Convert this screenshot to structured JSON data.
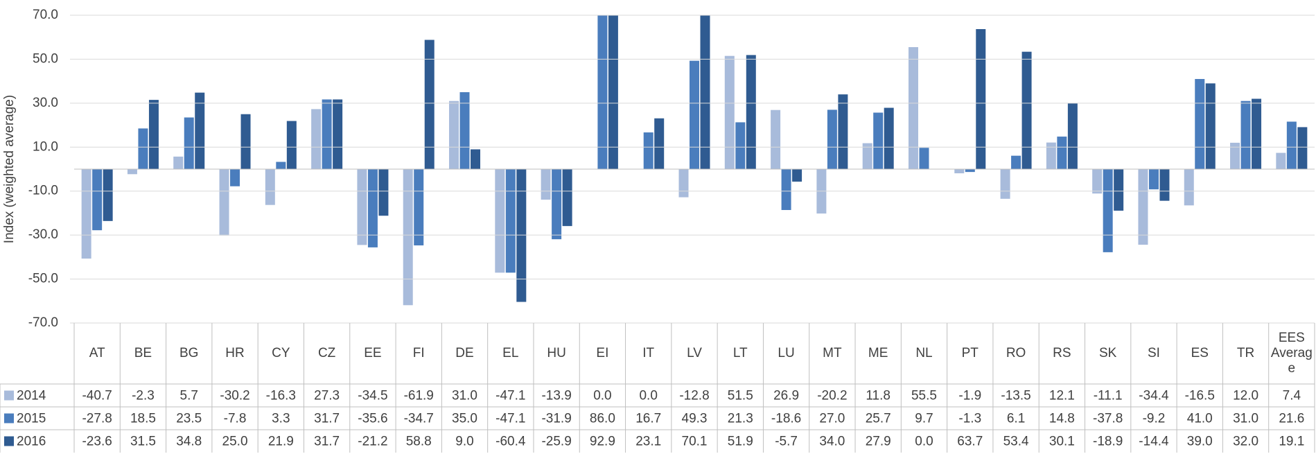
{
  "chart_data": {
    "type": "bar",
    "y_label": "Index (weighted average)",
    "categories": [
      "AT",
      "BE",
      "BG",
      "HR",
      "CY",
      "CZ",
      "EE",
      "FI",
      "DE",
      "EL",
      "HU",
      "EI",
      "IT",
      "LV",
      "LT",
      "LU",
      "MT",
      "ME",
      "NL",
      "PT",
      "RO",
      "RS",
      "SK",
      "SI",
      "ES",
      "TR",
      "EES Average"
    ],
    "series": [
      {
        "name": "2014",
        "color": "#a8bbdb",
        "values": [
          -40.7,
          -2.3,
          5.7,
          -30.2,
          -16.3,
          27.3,
          -34.5,
          -61.9,
          31.0,
          -47.1,
          -13.9,
          0.0,
          0.0,
          -12.8,
          51.5,
          26.9,
          -20.2,
          11.8,
          55.5,
          -1.9,
          -13.5,
          12.1,
          -11.1,
          -34.4,
          -16.5,
          12.0,
          7.4
        ],
        "value_labels": [
          "-40.7",
          "-2.3",
          "5.7",
          "-30.2",
          "-16.3",
          "27.3",
          "-34.5",
          "-61.9",
          "31.0",
          "-47.1",
          "-13.9",
          "0.0",
          "0.0",
          "-12.8",
          "51.5",
          "26.9",
          "-20.2",
          "11.8",
          "55.5",
          "-1.9",
          "-13.5",
          "12.1",
          "-11.1",
          "-34.4",
          "-16.5",
          "12.0",
          "7.4"
        ]
      },
      {
        "name": "2015",
        "color": "#4a7dbd",
        "values": [
          -27.8,
          18.5,
          23.5,
          -7.8,
          3.3,
          31.7,
          -35.6,
          -34.7,
          35.0,
          -47.1,
          -31.9,
          86.0,
          16.7,
          49.3,
          21.3,
          -18.6,
          27.0,
          25.7,
          9.7,
          -1.3,
          6.1,
          14.8,
          -37.8,
          -9.2,
          41.0,
          31.0,
          21.6
        ],
        "value_labels": [
          "-27.8",
          "18.5",
          "23.5",
          "-7.8",
          "3.3",
          "31.7",
          "-35.6",
          "-34.7",
          "35.0",
          "-47.1",
          "-31.9",
          "86.0",
          "16.7",
          "49.3",
          "21.3",
          "-18.6",
          "27.0",
          "25.7",
          "9.7",
          "-1.3",
          "6.1",
          "14.8",
          "-37.8",
          "-9.2",
          "41.0",
          "31.0",
          "21.6"
        ]
      },
      {
        "name": "2016",
        "color": "#2f5b91",
        "values": [
          -23.6,
          31.5,
          34.8,
          25.0,
          21.9,
          31.7,
          -21.2,
          58.8,
          9.0,
          -60.4,
          -25.9,
          92.9,
          23.1,
          70.1,
          51.9,
          -5.7,
          34.0,
          27.9,
          0.0,
          63.7,
          53.4,
          30.1,
          -18.9,
          -14.4,
          39.0,
          32.0,
          19.1
        ],
        "value_labels": [
          "-23.6",
          "31.5",
          "34.8",
          "25.0",
          "21.9",
          "31.7",
          "-21.2",
          "58.8",
          "9.0",
          "-60.4",
          "-25.9",
          "92.9",
          "23.1",
          "70.1",
          "51.9",
          "-5.7",
          "34.0",
          "27.9",
          "0.0",
          "63.7",
          "53.4",
          "30.1",
          "-18.9",
          "-14.4",
          "39.0",
          "32.0",
          "19.1"
        ]
      }
    ],
    "ylim": [
      -70,
      70
    ],
    "yticks": [
      {
        "value": 70,
        "label": "70.0"
      },
      {
        "value": 50,
        "label": "50.0"
      },
      {
        "value": 30,
        "label": "30.0"
      },
      {
        "value": 10,
        "label": "10.0"
      },
      {
        "value": -10,
        "label": "-10.0"
      },
      {
        "value": -30,
        "label": "-30.0"
      },
      {
        "value": -50,
        "label": "-50.0"
      },
      {
        "value": -70,
        "label": "-70.0"
      }
    ],
    "grid": true
  }
}
